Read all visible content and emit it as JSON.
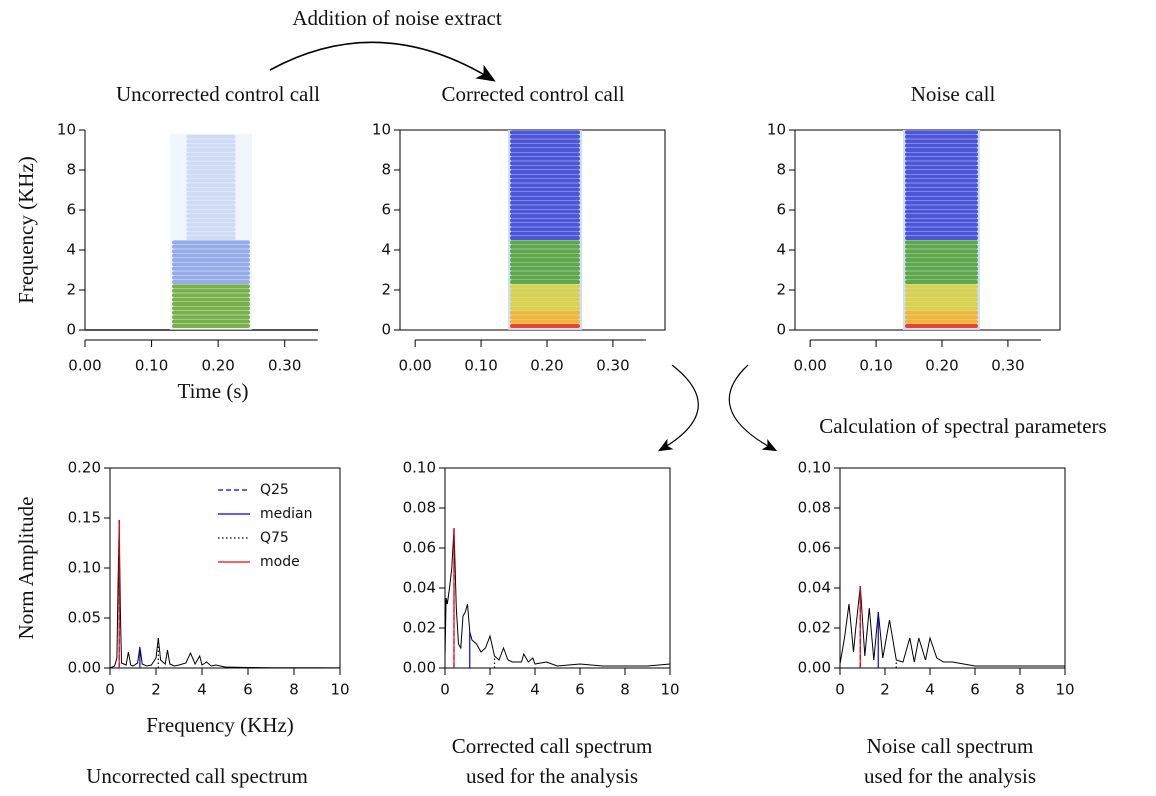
{
  "annotations": [
    "Addition of noise extract",
    "Calculation of spectral parameters"
  ],
  "chart_data": [
    {
      "type": "spectrogram",
      "title": "Uncorrected control call",
      "ylabel": "Frequency (KHz)",
      "xlabel": "Time (s)",
      "ylim": [
        0,
        10
      ],
      "yticks": [
        0,
        2,
        4,
        6,
        8,
        10
      ],
      "xlim": [
        0,
        0.353
      ],
      "xticks": [
        {
          "value": 0,
          "label": "0.00"
        },
        {
          "value": 0.1,
          "label": "0.10"
        },
        {
          "value": 0.2,
          "label": "0.20"
        },
        {
          "value": 0.3,
          "label": "0.30"
        }
      ]
    },
    {
      "type": "spectrogram",
      "title": "Corrected control call",
      "ylim": [
        0,
        10
      ],
      "yticks": [
        0,
        2,
        4,
        6,
        8,
        10
      ],
      "xlim": [
        -0.023,
        0.379
      ],
      "xticks": [
        {
          "value": 0,
          "label": "0.00"
        },
        {
          "value": 0.1,
          "label": "0.10"
        },
        {
          "value": 0.2,
          "label": "0.20"
        },
        {
          "value": 0.3,
          "label": "0.30"
        }
      ]
    },
    {
      "type": "spectrogram",
      "title": "Noise call",
      "ylim": [
        0,
        10
      ],
      "yticks": [
        0,
        2,
        4,
        6,
        8,
        10
      ],
      "xlim": [
        -0.023,
        0.379
      ],
      "xticks": [
        {
          "value": 0,
          "label": "0.00"
        },
        {
          "value": 0.1,
          "label": "0.10"
        },
        {
          "value": 0.2,
          "label": "0.20"
        },
        {
          "value": 0.3,
          "label": "0.30"
        }
      ]
    },
    {
      "type": "line",
      "title": [
        "Uncorrected call spectrum"
      ],
      "ylabel": "Norm Amplitude",
      "xlabel": "Frequency (KHz)",
      "color": "#000000",
      "xlim": [
        0,
        10
      ],
      "xticks": [
        0,
        2,
        4,
        6,
        8,
        10
      ],
      "ylim": [
        0,
        0.2
      ],
      "yticks": [
        {
          "value": 0,
          "label": "0.00"
        },
        {
          "value": 0.05,
          "label": "0.05"
        },
        {
          "value": 0.1,
          "label": "0.10"
        },
        {
          "value": 0.15,
          "label": "0.15"
        },
        {
          "value": 0.2,
          "label": "0.20"
        }
      ],
      "x": [
        0,
        0.2,
        0.3,
        0.35,
        0.4,
        0.45,
        0.5,
        0.7,
        0.8,
        0.9,
        1.0,
        1.2,
        1.3,
        1.4,
        1.6,
        1.8,
        2.0,
        2.1,
        2.2,
        2.4,
        2.5,
        2.6,
        2.8,
        3.0,
        3.3,
        3.5,
        3.7,
        3.9,
        4.0,
        4.2,
        4.4,
        4.6,
        5,
        6,
        7,
        8,
        9,
        10
      ],
      "values": [
        0,
        0.002,
        0.01,
        0.08,
        0.148,
        0.06,
        0.005,
        0.003,
        0.016,
        0.003,
        0.002,
        0.005,
        0.021,
        0.004,
        0.002,
        0.003,
        0.01,
        0.03,
        0.008,
        0.004,
        0.018,
        0.004,
        0.002,
        0.003,
        0.005,
        0.015,
        0.004,
        0.012,
        0.003,
        0.006,
        0.002,
        0.003,
        0.001,
        0.0005,
        0.0003,
        0.0002,
        0.0002,
        0.0001
      ],
      "legend": [
        {
          "name": "Q25",
          "color": "#0000ff",
          "dash": "dashed"
        },
        {
          "name": "median",
          "color": "#0000ff",
          "dash": "solid"
        },
        {
          "name": "Q75",
          "color": "#000000",
          "dash": "dotted"
        },
        {
          "name": "mode",
          "color": "#ff0000",
          "dash": "solid"
        }
      ],
      "quantiles": [
        0.4,
        1.3,
        2.1,
        0.4
      ]
    },
    {
      "type": "line",
      "title": [
        "Corrected call spectrum",
        "used for the analysis"
      ],
      "color": "#000000",
      "xlim": [
        0,
        10
      ],
      "xticks": [
        0,
        2,
        4,
        6,
        8,
        10
      ],
      "ylim": [
        0,
        0.1
      ],
      "yticks": [
        {
          "value": 0,
          "label": "0.00"
        },
        {
          "value": 0.02,
          "label": "0.02"
        },
        {
          "value": 0.04,
          "label": "0.04"
        },
        {
          "value": 0.06,
          "label": "0.06"
        },
        {
          "value": 0.08,
          "label": "0.08"
        },
        {
          "value": 0.1,
          "label": "0.10"
        }
      ],
      "x": [
        0,
        0.05,
        0.1,
        0.2,
        0.3,
        0.4,
        0.5,
        0.6,
        0.7,
        0.8,
        0.9,
        1.0,
        1.1,
        1.2,
        1.4,
        1.6,
        1.8,
        2.0,
        2.2,
        2.4,
        2.6,
        2.8,
        3.0,
        3.4,
        3.5,
        3.7,
        3.9,
        4.0,
        4.5,
        5,
        6,
        7,
        8,
        9,
        10
      ],
      "values": [
        0.005,
        0.035,
        0.032,
        0.04,
        0.05,
        0.07,
        0.03,
        0.012,
        0.01,
        0.026,
        0.028,
        0.032,
        0.018,
        0.014,
        0.012,
        0.008,
        0.01,
        0.016,
        0.006,
        0.004,
        0.01,
        0.004,
        0.003,
        0.003,
        0.007,
        0.003,
        0.005,
        0.002,
        0.003,
        0.001,
        0.002,
        0.001,
        0.001,
        0.001,
        0.002
      ],
      "quantiles": [
        0.4,
        1.1,
        2.2,
        0.4
      ]
    },
    {
      "type": "line",
      "title": [
        "Noise call spectrum",
        "used for the analysis"
      ],
      "color": "#000000",
      "xlim": [
        0,
        10
      ],
      "xticks": [
        0,
        2,
        4,
        6,
        8,
        10
      ],
      "ylim": [
        0,
        0.1
      ],
      "yticks": [
        {
          "value": 0,
          "label": "0.00"
        },
        {
          "value": 0.02,
          "label": "0.02"
        },
        {
          "value": 0.04,
          "label": "0.04"
        },
        {
          "value": 0.06,
          "label": "0.06"
        },
        {
          "value": 0.08,
          "label": "0.08"
        },
        {
          "value": 0.1,
          "label": "0.10"
        }
      ],
      "x": [
        0,
        0.2,
        0.4,
        0.6,
        0.7,
        0.9,
        1.1,
        1.3,
        1.5,
        1.7,
        1.9,
        2.2,
        2.5,
        2.8,
        3.1,
        3.3,
        3.5,
        3.8,
        4.0,
        4.3,
        4.6,
        5,
        5.5,
        6,
        7,
        8,
        9,
        10
      ],
      "values": [
        0.002,
        0.015,
        0.032,
        0.008,
        0.02,
        0.041,
        0.006,
        0.03,
        0.004,
        0.028,
        0.005,
        0.024,
        0.004,
        0.003,
        0.015,
        0.003,
        0.015,
        0.004,
        0.015,
        0.005,
        0.003,
        0.003,
        0.002,
        0.001,
        0.001,
        0.001,
        0.001,
        0.001
      ],
      "quantiles": [
        0.9,
        1.7,
        2.5,
        0.9
      ]
    }
  ]
}
